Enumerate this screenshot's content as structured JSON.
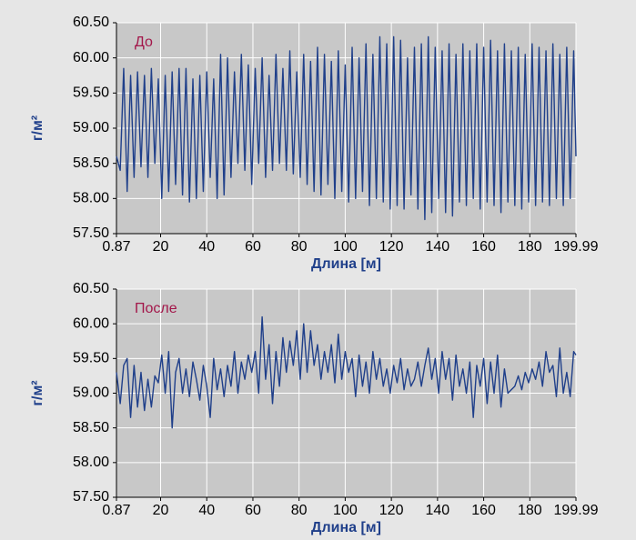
{
  "chart_data": [
    {
      "type": "line",
      "annotation": "До",
      "x_label": "Длина [м]",
      "y_label": "г/м²",
      "color": "#1f3f8a",
      "grid": true,
      "xlim": [
        0.87,
        199.99
      ],
      "xticks": [
        0.87,
        20,
        40,
        60,
        80,
        100,
        120,
        140,
        160,
        180,
        199.99
      ],
      "ylim": [
        57.5,
        60.5
      ],
      "yticks": [
        {
          "value": 57.5,
          "label": "57.50"
        },
        {
          "value": 58,
          "label": "58.00"
        },
        {
          "value": 58.5,
          "label": "58.50"
        },
        {
          "value": 59,
          "label": "59.00"
        },
        {
          "value": 59.5,
          "label": "59.50"
        },
        {
          "value": 60,
          "label": "60.00"
        },
        {
          "value": 60.5,
          "label": "60.50"
        }
      ],
      "x": [
        0.87,
        2.5,
        4,
        5.5,
        7,
        8.5,
        10,
        11.5,
        13,
        14.5,
        16,
        17.5,
        19,
        20.5,
        22,
        23.5,
        25,
        26.5,
        28,
        29.5,
        31,
        32.5,
        34,
        35.5,
        37,
        38.5,
        40,
        41.5,
        43,
        44.5,
        46,
        47.5,
        49,
        50.5,
        52,
        53.5,
        55,
        56.5,
        58,
        59.5,
        61,
        62.5,
        64,
        65.5,
        67,
        68.5,
        70,
        71.5,
        73,
        74.5,
        76,
        77.5,
        79,
        80.5,
        82,
        83.5,
        85,
        86.5,
        88,
        89.5,
        91,
        92.5,
        94,
        95.5,
        97,
        98.5,
        100,
        101.5,
        103,
        104.5,
        106,
        107.5,
        109,
        110.5,
        112,
        113.5,
        115,
        116.5,
        118,
        119.5,
        121,
        122.5,
        124,
        125.5,
        127,
        128.5,
        130,
        131.5,
        133,
        134.5,
        136,
        137.5,
        139,
        140.5,
        142,
        143.5,
        145,
        146.5,
        148,
        149.5,
        151,
        152.5,
        154,
        155.5,
        157,
        158.5,
        160,
        161.5,
        163,
        164.5,
        166,
        167.5,
        169,
        170.5,
        172,
        173.5,
        175,
        176.5,
        178,
        179.5,
        181,
        182.5,
        184,
        185.5,
        187,
        188.5,
        190,
        191.5,
        193,
        194.5,
        196,
        197.5,
        199,
        199.99
      ],
      "values": [
        58.6,
        58.4,
        59.85,
        58.1,
        59.75,
        58.3,
        59.8,
        58.45,
        59.75,
        58.3,
        59.85,
        58.5,
        59.7,
        58.0,
        59.75,
        58.1,
        59.8,
        58.2,
        59.85,
        58.05,
        59.85,
        57.95,
        59.7,
        58.0,
        59.75,
        58.1,
        59.8,
        58.3,
        59.7,
        58.0,
        60.05,
        58.05,
        60.0,
        58.3,
        59.8,
        58.5,
        60.05,
        58.4,
        59.9,
        58.2,
        59.85,
        58.5,
        60.0,
        58.3,
        59.75,
        58.4,
        60.05,
        58.5,
        59.85,
        58.4,
        60.1,
        58.35,
        59.8,
        58.3,
        60.05,
        58.2,
        59.95,
        58.1,
        60.15,
        58.05,
        60.05,
        58.2,
        59.95,
        58.0,
        60.1,
        58.1,
        59.9,
        57.95,
        60.15,
        58.0,
        60.0,
        58.1,
        60.2,
        57.9,
        60.05,
        58.0,
        60.3,
        57.95,
        60.2,
        57.85,
        60.3,
        57.9,
        60.25,
        57.85,
        60.0,
        58.05,
        60.15,
        57.85,
        60.2,
        57.7,
        60.3,
        57.8,
        60.15,
        58.0,
        60.1,
        57.8,
        60.2,
        57.75,
        60.05,
        57.95,
        60.2,
        57.9,
        60.1,
        58.0,
        60.2,
        57.85,
        60.15,
        57.95,
        60.25,
        57.9,
        60.1,
        57.8,
        60.2,
        57.95,
        60.1,
        57.9,
        60.15,
        57.85,
        60.05,
        57.95,
        60.2,
        57.9,
        60.15,
        57.95,
        60.1,
        57.9,
        60.2,
        58.0,
        60.05,
        57.9,
        60.15,
        58.0,
        60.1,
        58.6
      ]
    },
    {
      "type": "line",
      "annotation": "После",
      "x_label": "Длина [м]",
      "y_label": "г/м²",
      "color": "#1f3f8a",
      "grid": true,
      "xlim": [
        0.87,
        199.99
      ],
      "xticks": [
        0.87,
        20,
        40,
        60,
        80,
        100,
        120,
        140,
        160,
        180,
        199.99
      ],
      "ylim": [
        57.5,
        60.5
      ],
      "yticks": [
        {
          "value": 57.5,
          "label": "57.50"
        },
        {
          "value": 58,
          "label": "58.00"
        },
        {
          "value": 58.5,
          "label": "58.50"
        },
        {
          "value": 59,
          "label": "59.00"
        },
        {
          "value": 59.5,
          "label": "59.50"
        },
        {
          "value": 60,
          "label": "60.00"
        },
        {
          "value": 60.5,
          "label": "60.50"
        }
      ],
      "x": [
        0.87,
        2.5,
        4,
        5.5,
        7,
        8.5,
        10,
        11.5,
        13,
        14.5,
        16,
        17.5,
        19,
        20.5,
        22,
        23.5,
        25,
        26.5,
        28,
        29.5,
        31,
        32.5,
        34,
        35.5,
        37,
        38.5,
        40,
        41.5,
        43,
        44.5,
        46,
        47.5,
        49,
        50.5,
        52,
        53.5,
        55,
        56.5,
        58,
        59.5,
        61,
        62.5,
        64,
        65.5,
        67,
        68.5,
        70,
        71.5,
        73,
        74.5,
        76,
        77.5,
        79,
        80.5,
        82,
        83.5,
        85,
        86.5,
        88,
        89.5,
        91,
        92.5,
        94,
        95.5,
        97,
        98.5,
        100,
        101.5,
        103,
        104.5,
        106,
        107.5,
        109,
        110.5,
        112,
        113.5,
        115,
        116.5,
        118,
        119.5,
        121,
        122.5,
        124,
        125.5,
        127,
        128.5,
        130,
        131.5,
        133,
        134.5,
        136,
        137.5,
        139,
        140.5,
        142,
        143.5,
        145,
        146.5,
        148,
        149.5,
        151,
        152.5,
        154,
        155.5,
        157,
        158.5,
        160,
        161.5,
        163,
        164.5,
        166,
        167.5,
        169,
        170.5,
        172,
        173.5,
        175,
        176.5,
        178,
        179.5,
        181,
        182.5,
        184,
        185.5,
        187,
        188.5,
        190,
        191.5,
        193,
        194.5,
        196,
        197.5,
        199,
        199.99
      ],
      "values": [
        59.3,
        58.85,
        59.4,
        59.5,
        58.65,
        59.4,
        58.8,
        59.3,
        58.75,
        59.2,
        58.8,
        59.25,
        59.15,
        59.55,
        59.0,
        59.6,
        58.5,
        59.3,
        59.5,
        59.0,
        59.35,
        58.95,
        59.45,
        59.2,
        58.9,
        59.4,
        59.1,
        58.65,
        59.5,
        59.05,
        59.35,
        58.95,
        59.4,
        59.1,
        59.6,
        59.0,
        59.45,
        59.2,
        59.55,
        59.3,
        59.6,
        59.0,
        60.1,
        59.2,
        59.7,
        58.85,
        59.6,
        59.1,
        59.8,
        59.3,
        59.75,
        59.4,
        59.9,
        59.2,
        60.0,
        59.3,
        59.9,
        59.4,
        59.7,
        59.2,
        59.6,
        59.3,
        59.7,
        59.15,
        59.85,
        59.2,
        59.6,
        59.3,
        59.5,
        58.95,
        59.55,
        59.1,
        59.45,
        59.0,
        59.6,
        59.2,
        59.5,
        59.1,
        59.35,
        59.0,
        59.4,
        59.15,
        59.5,
        59.05,
        59.35,
        59.1,
        59.2,
        59.45,
        59.1,
        59.4,
        59.65,
        59.2,
        59.5,
        59.0,
        59.6,
        59.2,
        59.5,
        58.9,
        59.55,
        59.1,
        59.35,
        59.0,
        59.45,
        58.65,
        59.4,
        59.1,
        59.5,
        58.85,
        59.45,
        59.0,
        59.55,
        58.8,
        59.35,
        59.0,
        59.05,
        59.1,
        59.25,
        59.05,
        59.3,
        59.15,
        59.35,
        59.2,
        59.45,
        59.1,
        59.6,
        59.3,
        59.4,
        58.95,
        59.65,
        59.0,
        59.3,
        58.95,
        59.6,
        59.55
      ]
    }
  ]
}
